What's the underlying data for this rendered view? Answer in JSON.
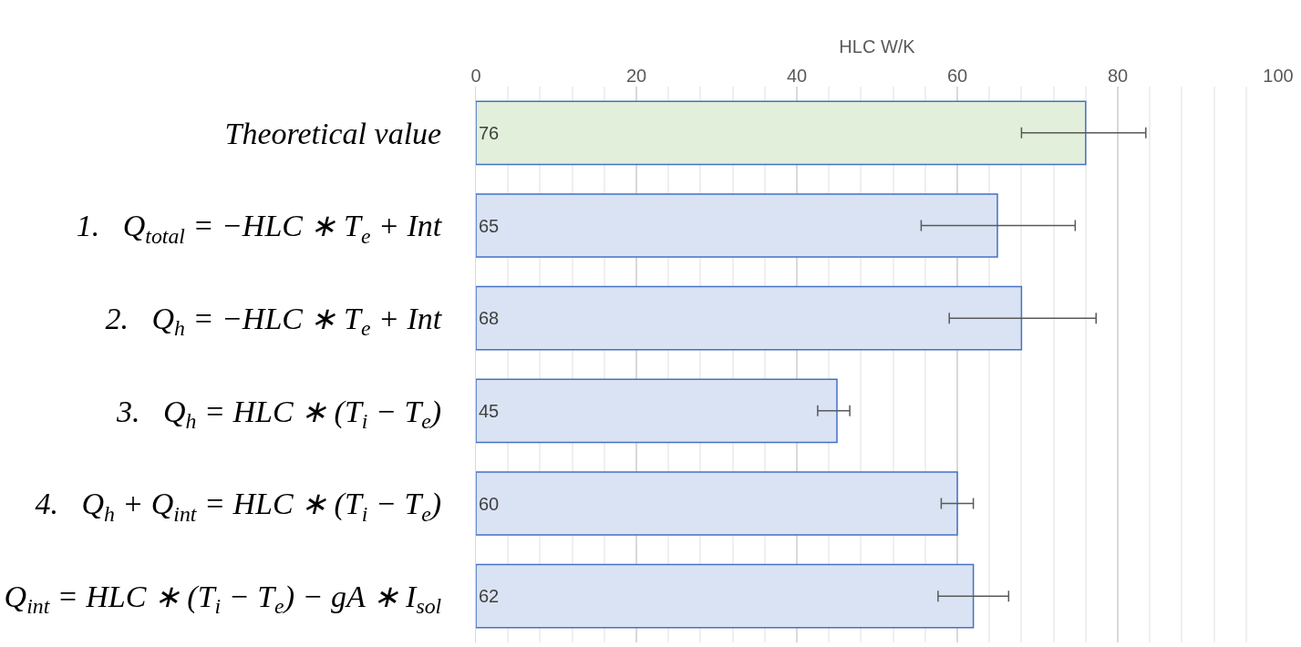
{
  "chart_data": {
    "type": "bar",
    "orientation": "horizontal",
    "xlabel": "HLC W/K",
    "categories": [
      "Theoretical value",
      "1.   Q$_{total}$ = −HLC ∗ T$_{e}$ + Int",
      "2.   Q$_{h}$ = −HLC ∗ T$_{e}$ + Int",
      "3.   Q$_{h}$ = HLC ∗ (T$_{i}$ − T$_{e}$)",
      "4.   Q$_{h}$ + Q$_{int}$ = HLC ∗ (T$_{i}$ − T$_{e}$)",
      "Q$_{int}$ = HLC ∗ (T$_{i}$ − T$_{e}$) − gA ∗ I$_{sol}$"
    ],
    "values": [
      76,
      65,
      68,
      45,
      60,
      62
    ],
    "colors": [
      "#e2efda",
      "#dae3f3",
      "#dae3f3",
      "#dae3f3",
      "#dae3f3",
      "#dae3f3"
    ],
    "errors": [
      [
        68,
        83.5
      ],
      [
        55.5,
        74.7
      ],
      [
        59,
        77.3
      ],
      [
        42.6,
        46.6
      ],
      [
        58,
        62
      ],
      [
        57.6,
        66.4
      ]
    ],
    "xlim": [
      0,
      100
    ],
    "xticks": [
      0,
      20,
      40,
      60,
      80,
      100
    ],
    "grid": "x",
    "data_labels": true
  }
}
